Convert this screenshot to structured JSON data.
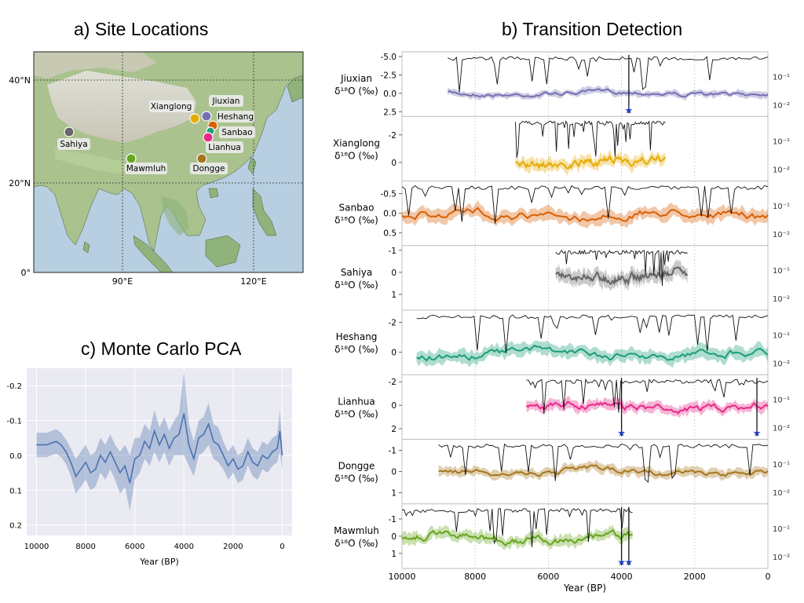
{
  "titles": {
    "a": "a) Site Locations",
    "b": "b) Transition Detection",
    "c": "c) Monte Carlo PCA"
  },
  "colors": {
    "Jiuxian": "#7570b3",
    "Xianglong": "#e6ab02",
    "Sanbao": "#d95f02",
    "Sahiya": "#666666",
    "Heshang": "#1b9e77",
    "Lianhua": "#e7298a",
    "Dongge": "#a6761d",
    "Mawmluh": "#66a61e",
    "pca": "#4c72b0",
    "transition": "#1f3fbf",
    "map_sea": "#b7cfe0",
    "map_land": "#a9c28e",
    "map_highland": "#d9d6cc",
    "pca_bg": "#eaeaf2"
  },
  "map": {
    "lat_labels": [
      "40°N",
      "20°N",
      "0°"
    ],
    "lon_labels": [
      "90°E",
      "120°E"
    ],
    "sites": [
      {
        "name": "Jiuxian",
        "lon": 111,
        "lat": 33.5
      },
      {
        "name": "Xianglong",
        "lon": 106,
        "lat": 32.9
      },
      {
        "name": "Heshang",
        "lon": 110.4,
        "lat": 30.5
      },
      {
        "name": "Sanbao",
        "lon": 110.4,
        "lat": 31.7
      },
      {
        "name": "Lianhua",
        "lon": 109.5,
        "lat": 29.5
      },
      {
        "name": "Dongge",
        "lon": 108,
        "lat": 25.3
      },
      {
        "name": "Sahiya",
        "lon": 77.9,
        "lat": 30.6
      },
      {
        "name": "Mawmluh",
        "lon": 91.9,
        "lat": 25.3
      }
    ]
  },
  "chart_data": [
    {
      "type": "line",
      "title": "b) Transition Detection",
      "xlabel": "Year (BP)",
      "xlim": [
        10000,
        0
      ],
      "x_ticks": [
        "10000",
        "8000",
        "6000",
        "4000",
        "2000",
        "0"
      ],
      "right_axis_ticks": [
        "10⁻¹",
        "10⁻²"
      ],
      "ylabel_unit": "δ¹⁸O (‰)",
      "series": [
        {
          "name": "Jiuxian",
          "xrange": [
            8750,
            0
          ],
          "ylim": [
            -5.0,
            2.5
          ],
          "yticks": [
            "-5.0",
            "-2.5",
            "0.0",
            "2.5"
          ],
          "mean": 0.0,
          "amp": 0.4,
          "transitions": [
            3800
          ]
        },
        {
          "name": "Xianglong",
          "xrange": [
            6900,
            2800
          ],
          "ylim": [
            -3.0,
            1.0
          ],
          "yticks": [
            "-2",
            "0"
          ],
          "mean": 0.0,
          "amp": 0.4,
          "transitions": []
        },
        {
          "name": "Sanbao",
          "xrange": [
            10000,
            0
          ],
          "ylim": [
            -0.7,
            0.7
          ],
          "yticks": [
            "-0.5",
            "0.0",
            "0.5"
          ],
          "mean": 0.05,
          "amp": 0.15,
          "transitions": []
        },
        {
          "name": "Sahiya",
          "xrange": [
            5800,
            2200
          ],
          "ylim": [
            -1.0,
            1.5
          ],
          "yticks": [
            "-1",
            "0",
            "1"
          ],
          "mean": 0.1,
          "amp": 0.3,
          "transitions": []
        },
        {
          "name": "Heshang",
          "xrange": [
            9600,
            0
          ],
          "ylim": [
            -2.5,
            1.2
          ],
          "yticks": [
            "-2",
            "0"
          ],
          "mean": 0.1,
          "amp": 0.4,
          "transitions": []
        },
        {
          "name": "Lianhua",
          "xrange": [
            6600,
            0
          ],
          "ylim": [
            -2.2,
            2.5
          ],
          "yticks": [
            "-2",
            "0",
            "2"
          ],
          "mean": 0.2,
          "amp": 0.4,
          "transitions": [
            4000,
            300
          ]
        },
        {
          "name": "Dongge",
          "xrange": [
            9000,
            0
          ],
          "ylim": [
            -1.3,
            1.3
          ],
          "yticks": [
            "-1",
            "0",
            "1"
          ],
          "mean": 0.0,
          "amp": 0.2,
          "transitions": []
        },
        {
          "name": "Mawmluh",
          "xrange": [
            10000,
            3700
          ],
          "ylim": [
            -1.6,
            1.6
          ],
          "yticks": [
            "-1",
            "0",
            "1"
          ],
          "mean": 0.1,
          "amp": 0.3,
          "transitions": [
            4000,
            3800
          ]
        }
      ]
    },
    {
      "type": "line",
      "title": "c) Monte Carlo PCA",
      "xlabel": "Year (BP)",
      "xlim": [
        10400,
        -400
      ],
      "ylim": [
        0.23,
        -0.25
      ],
      "x_ticks": [
        "10000",
        "8000",
        "6000",
        "4000",
        "2000",
        "0"
      ],
      "y_ticks": [
        "-0.2",
        "-0.1",
        "0.0",
        "0.1",
        "0.2"
      ],
      "series": [
        {
          "name": "",
          "x": [
            10000,
            9600,
            9200,
            9000,
            8800,
            8600,
            8400,
            8200,
            8000,
            7800,
            7600,
            7400,
            7200,
            7000,
            6800,
            6600,
            6400,
            6200,
            6000,
            5800,
            5600,
            5400,
            5200,
            5000,
            4800,
            4600,
            4400,
            4200,
            4000,
            3800,
            3600,
            3400,
            3200,
            3000,
            2800,
            2600,
            2400,
            2200,
            2000,
            1800,
            1600,
            1400,
            1200,
            1000,
            800,
            600,
            400,
            200,
            100,
            0
          ],
          "y": [
            -0.03,
            -0.03,
            -0.04,
            -0.03,
            -0.01,
            0.02,
            0.06,
            0.04,
            0.02,
            0.05,
            0.04,
            0.0,
            0.02,
            -0.01,
            0.02,
            0.05,
            0.03,
            0.08,
            0.01,
            0.0,
            -0.04,
            -0.02,
            -0.07,
            -0.03,
            -0.06,
            -0.02,
            -0.05,
            -0.06,
            -0.12,
            -0.03,
            0.01,
            -0.05,
            -0.06,
            -0.09,
            -0.04,
            -0.03,
            0.0,
            0.03,
            0.01,
            0.04,
            0.03,
            -0.01,
            0.02,
            0.03,
            0.0,
            0.01,
            -0.01,
            -0.02,
            -0.07,
            0.0
          ],
          "band": [
            0.035,
            0.035,
            0.035,
            0.035,
            0.035,
            0.04,
            0.05,
            0.05,
            0.05,
            0.05,
            0.05,
            0.05,
            0.05,
            0.05,
            0.05,
            0.06,
            0.06,
            0.08,
            0.06,
            0.05,
            0.05,
            0.05,
            0.06,
            0.05,
            0.05,
            0.05,
            0.05,
            0.06,
            0.12,
            0.06,
            0.05,
            0.05,
            0.05,
            0.06,
            0.05,
            0.05,
            0.04,
            0.04,
            0.04,
            0.04,
            0.04,
            0.04,
            0.04,
            0.04,
            0.04,
            0.04,
            0.04,
            0.04,
            0.06,
            0.04
          ]
        }
      ]
    }
  ]
}
